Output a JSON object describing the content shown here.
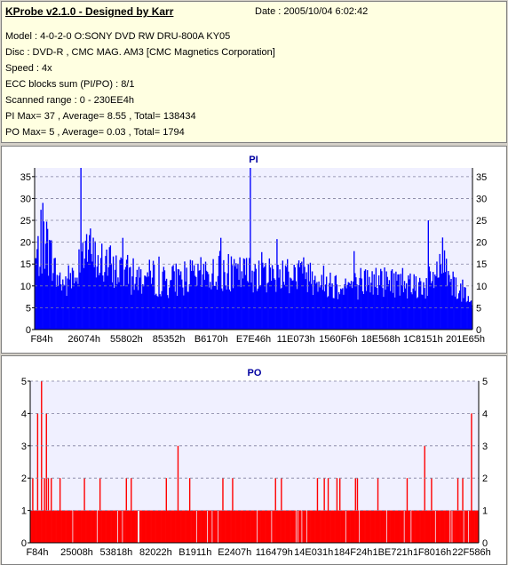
{
  "header": {
    "title": "KProbe v2.1.0 - Designed by Karr",
    "date": "Date : 2005/10/04 6:02:42",
    "lines": [
      "Model : 4-0-2-0 O:SONY     DVD RW DRU-800A  KY05",
      "Disc : DVD-R , CMC MAG. AM3 [CMC Magnetics Corporation]",
      "Speed : 4x",
      "ECC blocks sum (PI/PO) : 8/1",
      "Scanned range : 0 - 230EE4h",
      "PI Max= 37 , Average= 8.55 , Total= 138434",
      "PO Max= 5 , Average= 0.03 , Total= 1794"
    ]
  },
  "colors": {
    "pi": "#0000ff",
    "po": "#ff0000",
    "plot_bg": "#f0f0ff",
    "title": "#0000a0"
  },
  "chart_data": [
    {
      "type": "bar",
      "title": "PI",
      "ylim": [
        0,
        37
      ],
      "yticks": [
        0,
        5,
        10,
        15,
        20,
        25,
        30,
        35
      ],
      "xticks": [
        "F84h",
        "26074h",
        "55802h",
        "85352h",
        "B6170h",
        "E7E46h",
        "11E073h",
        "1560F6h",
        "18E568h",
        "1C8151h",
        "201E65h"
      ],
      "grid": true,
      "envelope": [
        [
          0.0,
          18
        ],
        [
          0.01,
          21
        ],
        [
          0.02,
          24
        ],
        [
          0.03,
          22
        ],
        [
          0.04,
          17
        ],
        [
          0.05,
          14
        ],
        [
          0.06,
          13
        ],
        [
          0.07,
          12
        ],
        [
          0.08,
          14
        ],
        [
          0.09,
          13
        ],
        [
          0.1,
          19
        ],
        [
          0.11,
          23
        ],
        [
          0.12,
          22
        ],
        [
          0.13,
          20
        ],
        [
          0.14,
          18
        ],
        [
          0.15,
          18
        ],
        [
          0.17,
          17
        ],
        [
          0.19,
          16
        ],
        [
          0.21,
          15
        ],
        [
          0.23,
          14
        ],
        [
          0.25,
          14
        ],
        [
          0.27,
          14
        ],
        [
          0.29,
          13
        ],
        [
          0.31,
          13
        ],
        [
          0.33,
          14
        ],
        [
          0.35,
          14
        ],
        [
          0.37,
          14
        ],
        [
          0.39,
          15
        ],
        [
          0.41,
          15
        ],
        [
          0.43,
          15
        ],
        [
          0.45,
          14
        ],
        [
          0.47,
          15
        ],
        [
          0.49,
          15
        ],
        [
          0.51,
          16
        ],
        [
          0.53,
          15
        ],
        [
          0.55,
          15
        ],
        [
          0.57,
          15
        ],
        [
          0.59,
          15
        ],
        [
          0.61,
          15
        ],
        [
          0.63,
          15
        ],
        [
          0.65,
          13
        ],
        [
          0.67,
          13
        ],
        [
          0.69,
          12
        ],
        [
          0.71,
          12
        ],
        [
          0.73,
          12
        ],
        [
          0.75,
          13
        ],
        [
          0.77,
          13
        ],
        [
          0.79,
          13
        ],
        [
          0.81,
          13
        ],
        [
          0.83,
          13
        ],
        [
          0.85,
          13
        ],
        [
          0.87,
          12
        ],
        [
          0.89,
          12
        ],
        [
          0.91,
          13
        ],
        [
          0.92,
          16
        ],
        [
          0.93,
          19
        ],
        [
          0.94,
          18
        ],
        [
          0.95,
          15
        ],
        [
          0.96,
          12
        ],
        [
          0.97,
          11
        ],
        [
          0.98,
          10
        ],
        [
          1.0,
          10
        ]
      ],
      "spikes": [
        [
          0.105,
          37
        ],
        [
          0.492,
          37
        ],
        [
          0.018,
          29
        ],
        [
          0.9,
          25
        ],
        [
          0.2,
          21
        ],
        [
          0.425,
          21
        ]
      ]
    },
    {
      "type": "bar",
      "title": "PO",
      "ylim": [
        0,
        5
      ],
      "yticks": [
        0,
        1,
        2,
        3,
        4,
        5
      ],
      "xticks": [
        "F84h",
        "25008h",
        "53818h",
        "82022h",
        "B1911h",
        "E2407h",
        "116479h",
        "14E031h",
        "184F24h",
        "1BE721h",
        "1F8016h",
        "22F586h"
      ],
      "grid": true,
      "baseline_level": 1,
      "spikes": [
        [
          0.025,
          5
        ],
        [
          0.015,
          4
        ],
        [
          0.035,
          4
        ],
        [
          0.985,
          4
        ],
        [
          0.005,
          2
        ],
        [
          0.045,
          2
        ],
        [
          0.065,
          2
        ],
        [
          0.12,
          2
        ],
        [
          0.155,
          2
        ],
        [
          0.225,
          2
        ],
        [
          0.33,
          3
        ],
        [
          0.355,
          2
        ],
        [
          0.43,
          2
        ],
        [
          0.56,
          2
        ],
        [
          0.64,
          2
        ],
        [
          0.655,
          2
        ],
        [
          0.665,
          2
        ],
        [
          0.685,
          2
        ],
        [
          0.69,
          2
        ],
        [
          0.725,
          2
        ],
        [
          0.73,
          2
        ],
        [
          0.775,
          2
        ],
        [
          0.84,
          2
        ],
        [
          0.88,
          3
        ],
        [
          0.895,
          2
        ],
        [
          0.955,
          2
        ],
        [
          0.965,
          2
        ]
      ]
    }
  ]
}
